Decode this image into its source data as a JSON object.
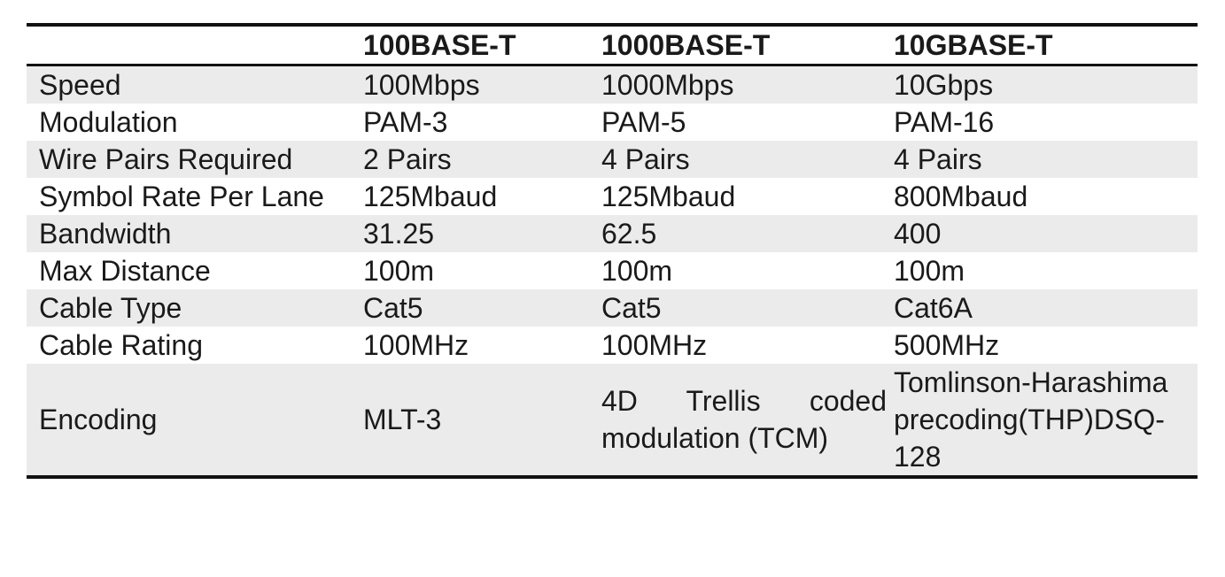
{
  "table": {
    "headers": [
      "",
      "100BASE-T",
      "1000BASE-T",
      "10GBASE-T"
    ],
    "rows": [
      [
        "Speed",
        "100Mbps",
        "1000Mbps",
        "10Gbps"
      ],
      [
        "Modulation",
        "PAM-3",
        "PAM-5",
        "PAM-16"
      ],
      [
        "Wire Pairs Required",
        "2 Pairs",
        "4 Pairs",
        "4 Pairs"
      ],
      [
        "Symbol Rate Per Lane",
        "125Mbaud",
        "125Mbaud",
        "800Mbaud"
      ],
      [
        "Bandwidth",
        "31.25",
        "62.5",
        "400"
      ],
      [
        "Max Distance",
        "100m",
        "100m",
        "100m"
      ],
      [
        "Cable Type",
        "Cat5",
        "Cat5",
        "Cat6A"
      ],
      [
        "Cable Rating",
        "100MHz",
        "100MHz",
        "500MHz"
      ],
      [
        "Encoding",
        "MLT-3",
        "4D Trellis coded modulation (TCM)",
        "Tomlinson-Harashima precoding(THP)DSQ-128"
      ]
    ]
  },
  "colors": {
    "row_shaded": "#ebebeb",
    "row_plain": "#ffffff",
    "rule": "#111111",
    "text": "#1a1a1a"
  }
}
